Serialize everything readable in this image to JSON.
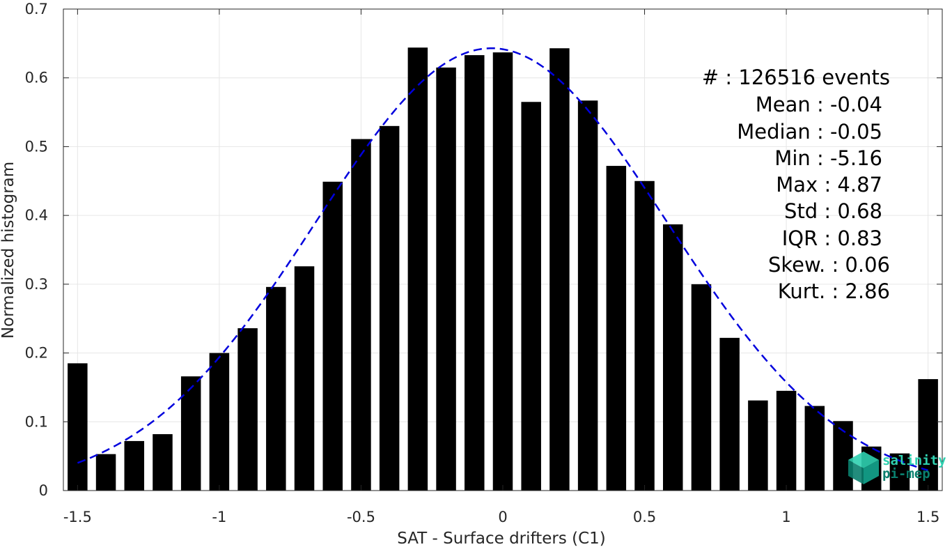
{
  "chart_data": {
    "type": "bar",
    "title": "",
    "xlabel": "SAT - Surface drifters (C1)",
    "ylabel": "Normalized histogram",
    "xlim": [
      -1.55,
      1.55
    ],
    "ylim": [
      0,
      0.7
    ],
    "xticks": [
      -1.5,
      -1,
      -0.5,
      0,
      0.5,
      1,
      1.5
    ],
    "xtick_labels": [
      "-1.5",
      "-1",
      "-0.5",
      "0",
      "0.5",
      "1",
      "1.5"
    ],
    "yticks": [
      0,
      0.1,
      0.2,
      0.3,
      0.4,
      0.5,
      0.6,
      0.7
    ],
    "ytick_labels": [
      "0",
      "0.1",
      "0.2",
      "0.3",
      "0.4",
      "0.5",
      "0.6",
      "0.7"
    ],
    "grid": true,
    "bar_color": "#000000",
    "bar_width": 0.07,
    "bins": [
      -1.5,
      -1.4,
      -1.3,
      -1.2,
      -1.1,
      -1.0,
      -0.9,
      -0.8,
      -0.7,
      -0.6,
      -0.5,
      -0.4,
      -0.3,
      -0.2,
      -0.1,
      0.0,
      0.1,
      0.2,
      0.3,
      0.4,
      0.5,
      0.6,
      0.7,
      0.8,
      0.9,
      1.0,
      1.1,
      1.2,
      1.3,
      1.4,
      1.5
    ],
    "values": [
      0.185,
      0.053,
      0.072,
      0.082,
      0.166,
      0.2,
      0.236,
      0.296,
      0.326,
      0.449,
      0.511,
      0.53,
      0.644,
      0.615,
      0.633,
      0.637,
      0.565,
      0.643,
      0.567,
      0.472,
      0.45,
      0.387,
      0.3,
      0.222,
      0.131,
      0.145,
      0.123,
      0.101,
      0.064,
      0.054,
      0.162
    ],
    "fit": {
      "style": "dashed",
      "color": "#0000dd",
      "mean": -0.04,
      "std": 0.62,
      "peak": 0.643,
      "x_start": -1.5,
      "x_end": 1.5
    },
    "stats_lines": [
      "#  : 126516 events",
      "Mean : -0.04",
      "Median : -0.05",
      "Min : -5.16",
      "Max : 4.87",
      "Std : 0.68",
      "IQR : 0.83",
      "Skew. : 0.06",
      "Kurt. : 2.86"
    ]
  },
  "logo": {
    "line1": "salinity",
    "line2": "pi-mep",
    "color_light": "#2fd0b0",
    "color_dark": "#0a7f6e"
  }
}
